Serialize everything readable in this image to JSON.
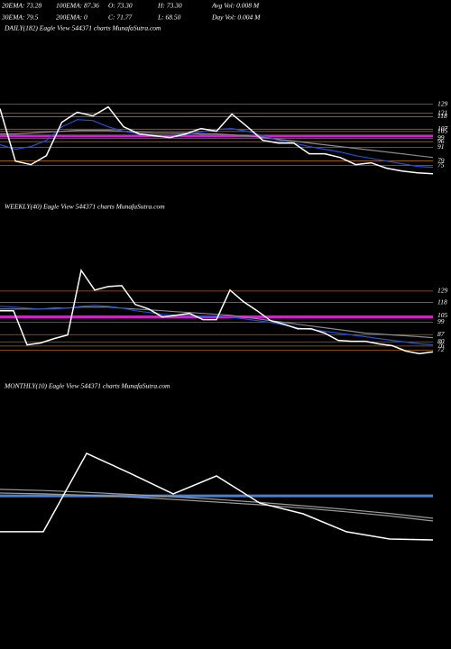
{
  "header": {
    "items": [
      "20EMA: 73.28",
      "100EMA: 87.36",
      "O: 73.30",
      "H: 73.30",
      "Avg Vol: 0.008 M",
      "30EMA: 79.5",
      "200EMA: 0",
      "C: 71.77",
      "L: 68.50",
      "Day Vol: 0.004 M"
    ]
  },
  "chart_data": [
    {
      "type": "line",
      "title": "DAILY(182) Eagle  View  544371 charts MunafaSutra.com",
      "ylim": [
        62,
        189
      ],
      "yticks": [
        129,
        121,
        118,
        107,
        105,
        99,
        96,
        91,
        79,
        75
      ],
      "series": [
        {
          "color": "#8a8a8a",
          "values": [
            102.8,
            102.8,
            103.6,
            104.4,
            105.2,
            106.0,
            106.0,
            106.0,
            105.2,
            104.4,
            103.6,
            103.6,
            103.6,
            102.8,
            102.8,
            102.0,
            101.2,
            99.6,
            98.0,
            96.5,
            94.9,
            93.3,
            91.7,
            90.1,
            88.5,
            86.9,
            85.3,
            83.7,
            82.1
          ]
        },
        {
          "color": "#2050d8",
          "values": [
            93.3,
            89.3,
            91.7,
            97.2,
            109.1,
            115.4,
            114.6,
            109.1,
            105.2,
            102.8,
            102.0,
            102.0,
            102.8,
            104.4,
            106.8,
            107.6,
            105.2,
            101.2,
            97.2,
            94.8,
            91.7,
            89.3,
            86.9,
            83.7,
            81.3,
            78.9,
            76.6,
            74.2,
            73.4
          ]
        },
        {
          "color": "#ffffff",
          "values": [
            125.0,
            78.9,
            75.8,
            83.7,
            113.1,
            121.9,
            118.7,
            126.6,
            109.1,
            102.8,
            101.2,
            99.6,
            102.8,
            107.6,
            105.2,
            120.3,
            109.1,
            97.2,
            94.8,
            94.8,
            85.3,
            85.3,
            82.1,
            75.8,
            77.4,
            72.6,
            70.2,
            68.6,
            67.8
          ]
        }
      ],
      "hlines": [
        {
          "value": 101,
          "color": "#d020d0"
        }
      ]
    },
    {
      "type": "line",
      "title": "WEEKLY(40) Eagle  View  544371 charts MunafaSutra.com",
      "ylim": [
        62,
        201
      ],
      "yticks": [
        129,
        118,
        105,
        99,
        87,
        80,
        76,
        72
      ],
      "series": [
        {
          "color": "#8a8a8a",
          "values": [
            111.7,
            111.7,
            111.7,
            111.7,
            112.6,
            112.6,
            113.5,
            113.5,
            113.5,
            112.6,
            111.7,
            110.9,
            110.0,
            109.1,
            108.3,
            107.4,
            106.6,
            105.7,
            104.0,
            102.3,
            100.5,
            98.8,
            97.0,
            95.3,
            93.6,
            91.9,
            90.2,
            88.4,
            87.6,
            86.7,
            85.9,
            85.0,
            84.1
          ]
        },
        {
          "color": "#2050d8",
          "values": [
            114.3,
            113.5,
            112.6,
            111.7,
            111.7,
            112.6,
            114.3,
            115.2,
            114.3,
            112.6,
            110.0,
            108.3,
            106.6,
            105.7,
            105.7,
            104.8,
            104.8,
            104.0,
            102.3,
            100.5,
            98.8,
            96.2,
            93.6,
            91.9,
            90.2,
            88.4,
            86.7,
            85.0,
            83.2,
            81.5,
            79.8,
            78.1,
            77.2
          ]
        },
        {
          "color": "#ffffff",
          "values": [
            110.0,
            110.0,
            77.2,
            78.9,
            83.2,
            86.7,
            148.9,
            129.9,
            133.3,
            134.2,
            116.0,
            111.7,
            104.0,
            105.7,
            107.4,
            101.4,
            101.4,
            129.9,
            118.6,
            110.0,
            100.5,
            97.0,
            92.7,
            92.7,
            88.4,
            81.5,
            80.6,
            80.6,
            78.1,
            76.3,
            71.1,
            68.6,
            70.3
          ]
        }
      ],
      "hlines": [
        {
          "value": 104,
          "color": "#d020d0"
        }
      ]
    },
    {
      "type": "line",
      "title": "MONTHLY(10) Eagle  View  544371 charts MunafaSutra.com",
      "ylim": [
        40,
        160
      ],
      "series": [
        {
          "color": "#9a9a9a",
          "values": [
            112.5,
            111.9,
            111.0,
            109.9,
            108.7,
            107.4,
            105.8,
            104.1,
            102.2,
            100.2,
            97.7
          ]
        },
        {
          "color": "#9a9a9a",
          "values": [
            110.6,
            110.2,
            109.5,
            108.6,
            107.4,
            106.0,
            104.6,
            102.9,
            101.0,
            98.9,
            96.3
          ]
        },
        {
          "color": "#ffffff",
          "values": [
            90.8,
            90.8,
            130.9,
            120.8,
            110.2,
            119.4,
            105.5,
            100.0,
            90.8,
            87.1,
            86.6
          ]
        }
      ],
      "hlines": [
        {
          "value": 109.2,
          "color": "#4a80d8"
        }
      ]
    }
  ]
}
